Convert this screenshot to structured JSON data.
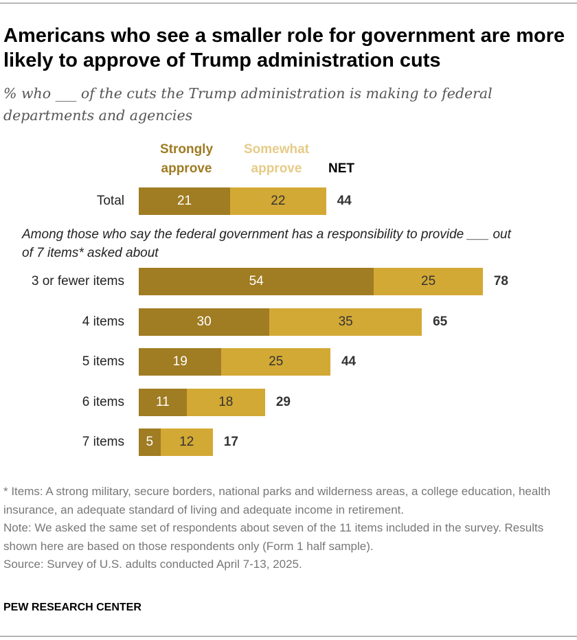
{
  "title": "Americans who see a smaller role for government are more likely to approve of Trump administration cuts",
  "subtitle": "% who ___ of the cuts the Trump administration is making to federal departments and agencies",
  "colors": {
    "strongly": "#A07C22",
    "somewhat": "#D3A935",
    "somewhat_legend": "#E6CB87",
    "strongly_legend": "#9E7B22"
  },
  "chart_data": {
    "type": "bar",
    "orientation": "horizontal-stacked",
    "legend": {
      "strongly": "Strongly approve",
      "somewhat": "Somewhat approve",
      "net": "NET"
    },
    "group_label": "Among those who say the federal government has a responsibility to provide ___ out of 7 items* asked about",
    "categories": [
      "Total",
      "3 or fewer items",
      "4 items",
      "5 items",
      "6 items",
      "7 items"
    ],
    "series": [
      {
        "name": "Strongly approve",
        "values": [
          21,
          54,
          30,
          19,
          11,
          5
        ]
      },
      {
        "name": "Somewhat approve",
        "values": [
          22,
          25,
          35,
          25,
          18,
          12
        ]
      }
    ],
    "net": [
      44,
      78,
      65,
      44,
      29,
      17
    ]
  },
  "notes": {
    "items": "* Items: A strong military, secure borders, national parks and wilderness areas, a college education, health insurance, an adequate standard of living and adequate income in retirement.",
    "note": "Note: We asked the same set of respondents about seven of the 11 items included in the survey. Results shown here are based on those respondents only (Form 1 half sample).",
    "source": "Source: Survey of U.S. adults conducted April 7-13, 2025."
  },
  "brand": "PEW RESEARCH CENTER"
}
